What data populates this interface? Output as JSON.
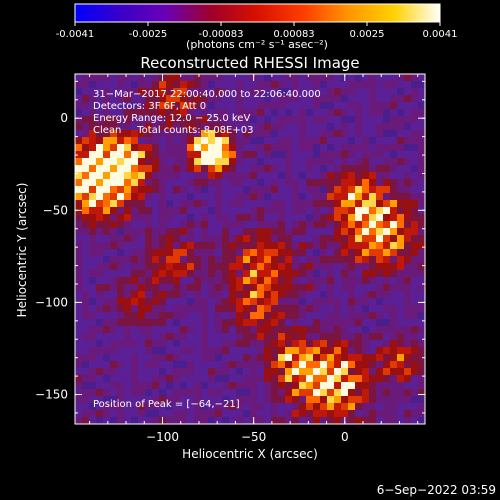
{
  "colorbar": {
    "tick_labels": [
      "-0.0041",
      "-0.0025",
      "-0.00083",
      "0.00083",
      "0.0025",
      "0.0041"
    ],
    "units_label": "(photons cm⁻² s⁻¹ asec⁻²)",
    "stops": [
      "#0000ff",
      "#3a00c8",
      "#6a00b4",
      "#a00028",
      "#d81000",
      "#ff3c00",
      "#ff9600",
      "#ffd200",
      "#ffffff"
    ]
  },
  "plot": {
    "title": "Reconstructed RHESSI Image",
    "xlabel": "Heliocentric X (arcsec)",
    "ylabel": "Heliocentric Y (arcsec)",
    "x_ticks": [
      {
        "value": -100,
        "label": "−100"
      },
      {
        "value": -50,
        "label": "−50"
      },
      {
        "value": 0,
        "label": "0"
      }
    ],
    "y_ticks": [
      {
        "value": 0,
        "label": "0"
      },
      {
        "value": -50,
        "label": "−50"
      },
      {
        "value": -100,
        "label": "−100"
      },
      {
        "value": -150,
        "label": "−150"
      }
    ],
    "xlim": [
      -148,
      44
    ],
    "ylim": [
      -166,
      24
    ]
  },
  "annotations": {
    "line1": "31−Mar−2017 22:00:40.000 to 22:06:40.000",
    "line2": "Detectors: 3F 6F, Att 0",
    "line3": "Energy Range: 12.0 − 25.0 keV",
    "line4": "Clean     Total counts: 8.08E+03",
    "peak": "Position of Peak = [−64,−21]"
  },
  "footer": {
    "date": "6−Sep−2022 03:59"
  }
}
